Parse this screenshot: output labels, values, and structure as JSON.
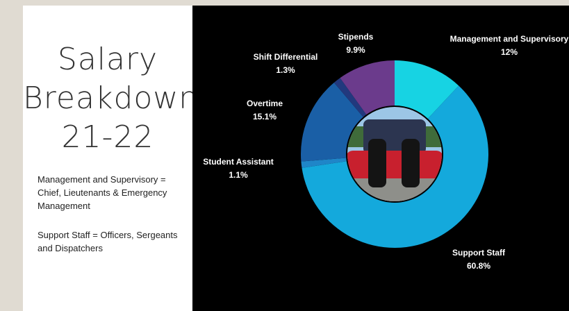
{
  "sidebar": {
    "title_lines": [
      "Salary",
      "Breakdown",
      "21-22"
    ],
    "notes": [
      "Management and Supervisory = Chief, Lieutenants & Emergency Management",
      "Support Staff = Officers, Sergeants and Dispatchers"
    ]
  },
  "chart_data": {
    "type": "pie",
    "categories": [
      "Management and Supervisory",
      "Support Staff",
      "Student Assistant",
      "Overtime",
      "Shift Differential",
      "Stipends"
    ],
    "values": [
      12,
      60.8,
      1.1,
      15.1,
      1.3,
      9.9
    ],
    "value_labels": [
      "12%",
      "60.8%",
      "1.1%",
      "15.1%",
      "1.3%",
      "9.9%"
    ],
    "colors": [
      "#17d3e3",
      "#14a9dc",
      "#1f86c8",
      "#1a5fa6",
      "#22397e",
      "#6b3b8c"
    ]
  }
}
